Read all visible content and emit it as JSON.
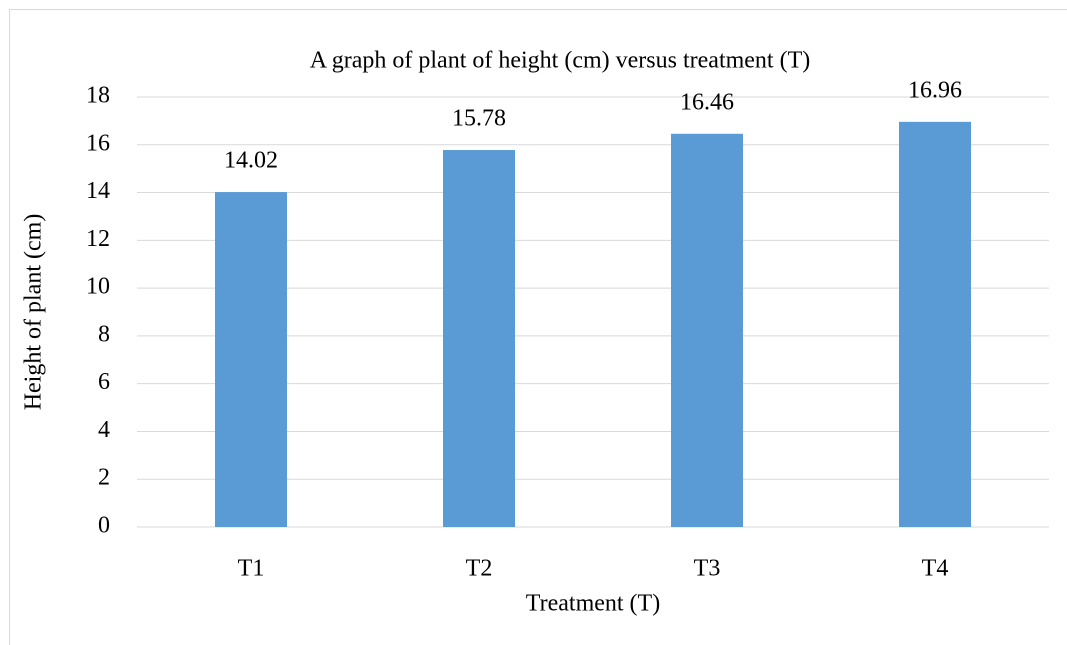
{
  "chart_data": {
    "type": "bar",
    "title": "A graph of plant of height (cm) versus treatment (T)",
    "x_label": "Treatment (T)",
    "y_label": "Height of plant (cm)",
    "categories": [
      "T1",
      "T2",
      "T3",
      "T4"
    ],
    "values": [
      14.02,
      15.78,
      16.46,
      16.96
    ],
    "color": "#5b9bd5",
    "ylim": [
      0,
      18
    ],
    "yticks": [
      0,
      2,
      4,
      6,
      8,
      10,
      12,
      14,
      16,
      18
    ],
    "grid": true
  }
}
